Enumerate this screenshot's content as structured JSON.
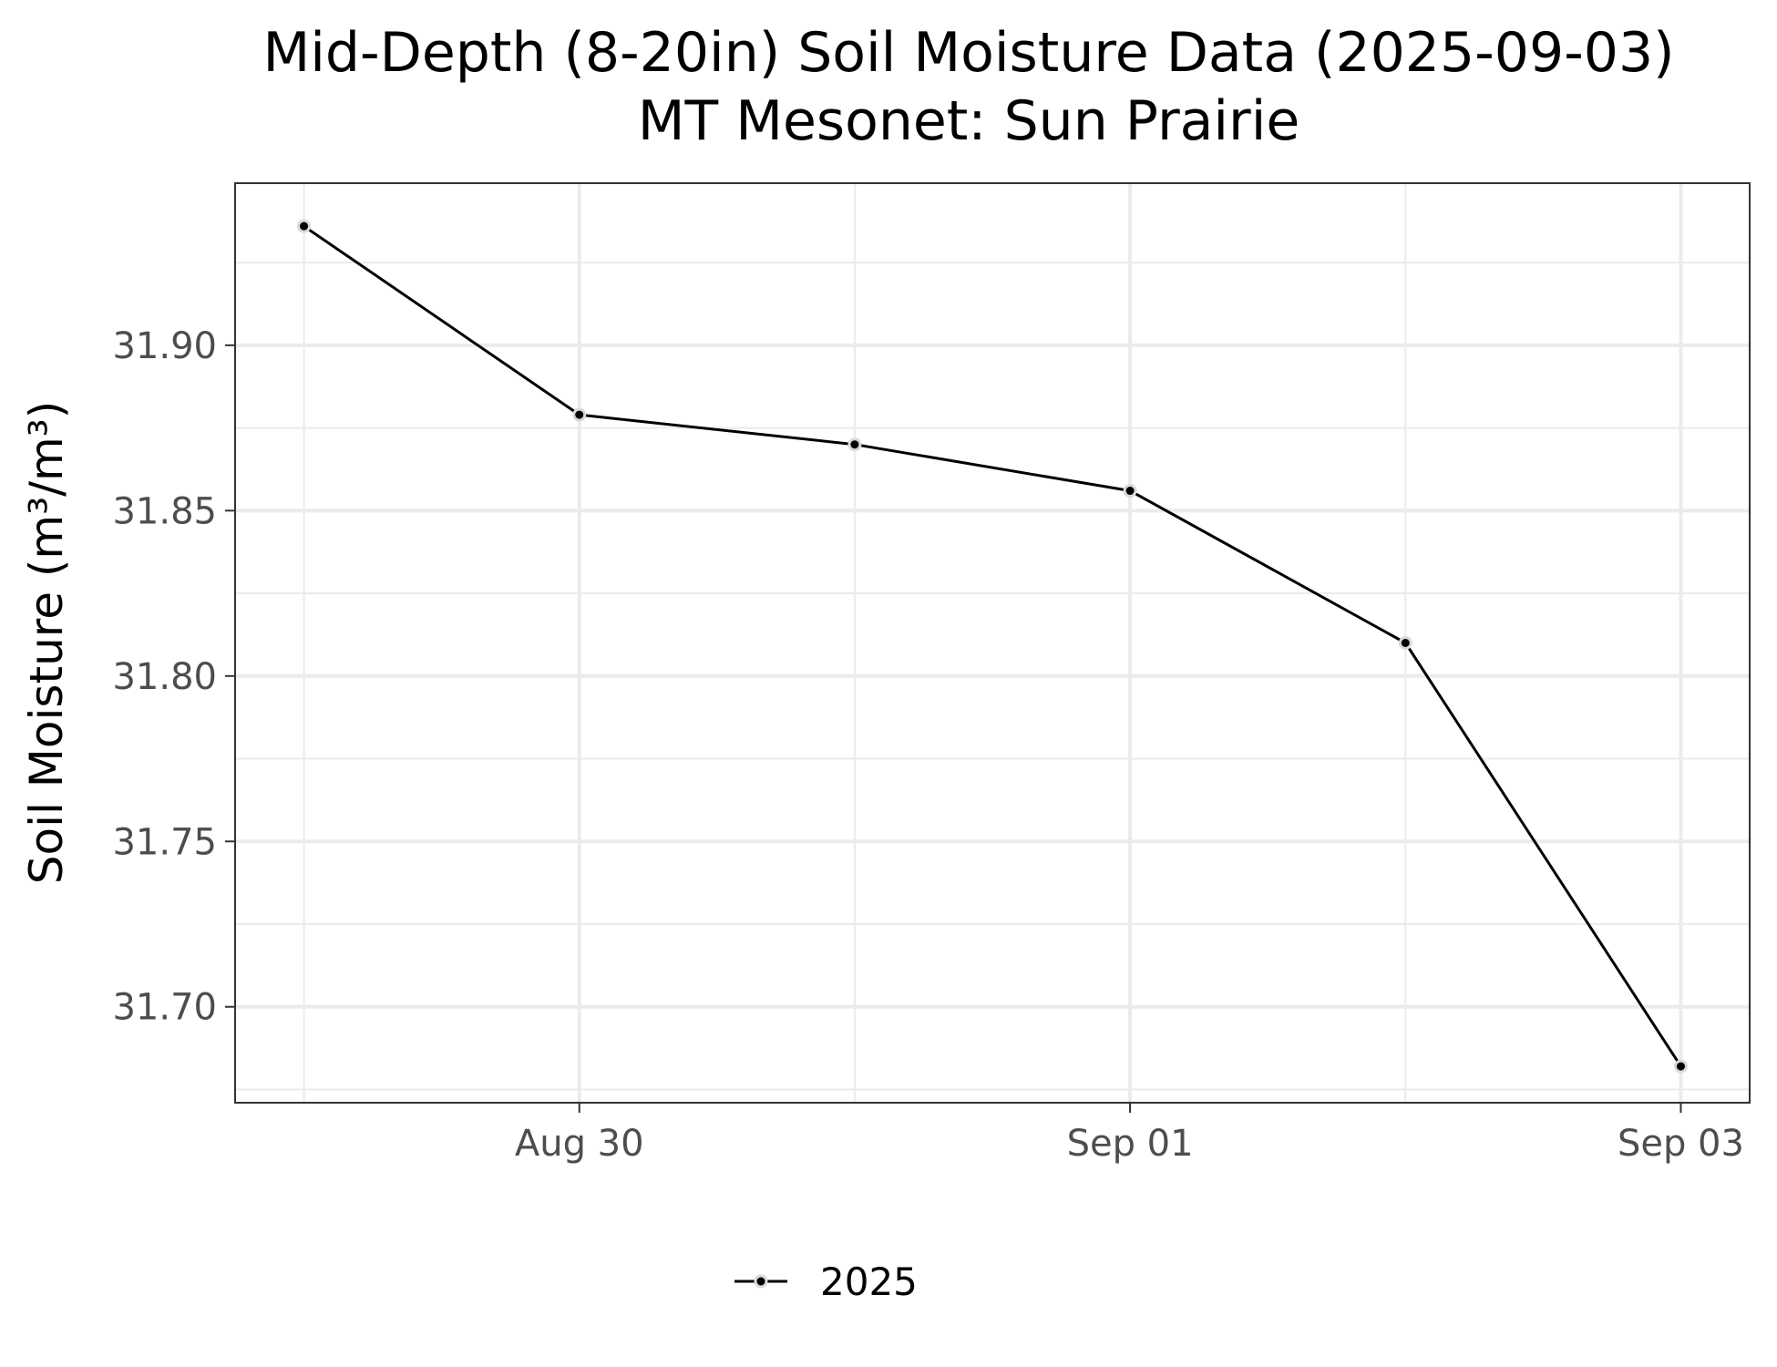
{
  "chart_data": {
    "type": "line",
    "title_lines": [
      "Mid-Depth (8-20in) Soil Moisture Data (2025-09-03)",
      "MT Mesonet: Sun Prairie"
    ],
    "xlabel": "",
    "ylabel": "Soil Moisture (m³/m³)",
    "x": [
      "2025-08-29",
      "2025-08-30",
      "2025-08-31",
      "2025-09-01",
      "2025-09-02",
      "2025-09-03"
    ],
    "x_ticks": [
      {
        "date": "2025-08-30",
        "label": "Aug 30"
      },
      {
        "date": "2025-09-01",
        "label": "Sep 01"
      },
      {
        "date": "2025-09-03",
        "label": "Sep 03"
      }
    ],
    "x_minor_ticks": [
      "2025-08-29",
      "2025-08-31",
      "2025-09-02"
    ],
    "xlim": [
      "2025-08-28T18:00",
      "2025-09-03T06:00"
    ],
    "y_ticks": [
      {
        "value": 31.7,
        "label": "31.70"
      },
      {
        "value": 31.75,
        "label": "31.75"
      },
      {
        "value": 31.8,
        "label": "31.80"
      },
      {
        "value": 31.85,
        "label": "31.85"
      },
      {
        "value": 31.9,
        "label": "31.90"
      }
    ],
    "ylim": [
      31.671,
      31.949
    ],
    "series": [
      {
        "name": "2025",
        "color": "#000000",
        "values": [
          31.936,
          31.879,
          31.87,
          31.856,
          31.81,
          31.682
        ]
      }
    ],
    "grid": true,
    "legend_position": "bottom"
  }
}
